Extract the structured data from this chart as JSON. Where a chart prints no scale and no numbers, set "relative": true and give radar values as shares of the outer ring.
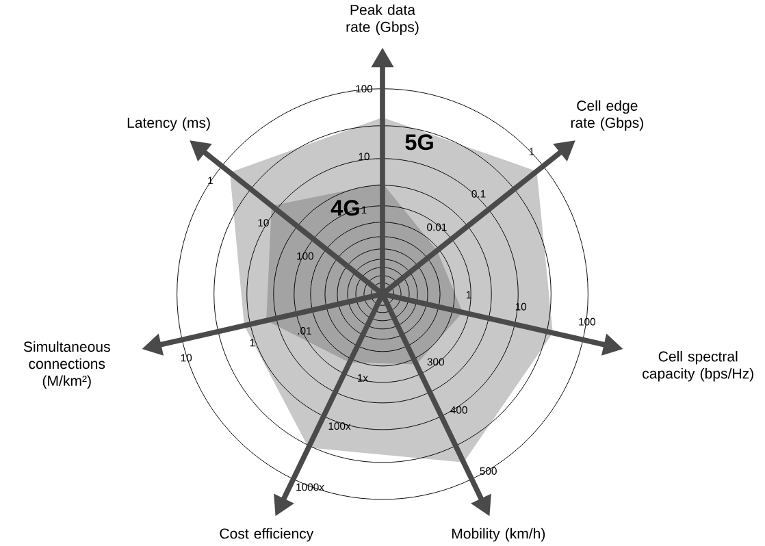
{
  "chart_data": {
    "type": "radar",
    "relative": true,
    "grid": true,
    "categories": [
      "Peak data rate (Gbps)",
      "Cell edge rate (Gbps)",
      "Cell spectral capacity (bps/Hz)",
      "Mobility (km/h)",
      "Cost efficiency",
      "Simultaneous connections (M/km²)",
      "Latency (ms)"
    ],
    "series": [
      {
        "name": "5G",
        "color": "#c8c8c8",
        "values": [
          0.86,
          0.96,
          0.85,
          0.91,
          0.83,
          0.69,
          0.95
        ]
      },
      {
        "name": "4G",
        "color": "#a3a3a3",
        "values": [
          0.54,
          0.34,
          0.4,
          0.38,
          0.37,
          0.58,
          0.69
        ]
      }
    ],
    "annotations": [
      "100",
      "10",
      "1",
      "1",
      "0.1",
      "0.01",
      "100",
      "10",
      "1",
      "500",
      "400",
      "300",
      "1000x",
      "100x",
      "1x",
      "10",
      "1",
      ".01",
      "1",
      "10",
      "100"
    ]
  }
}
